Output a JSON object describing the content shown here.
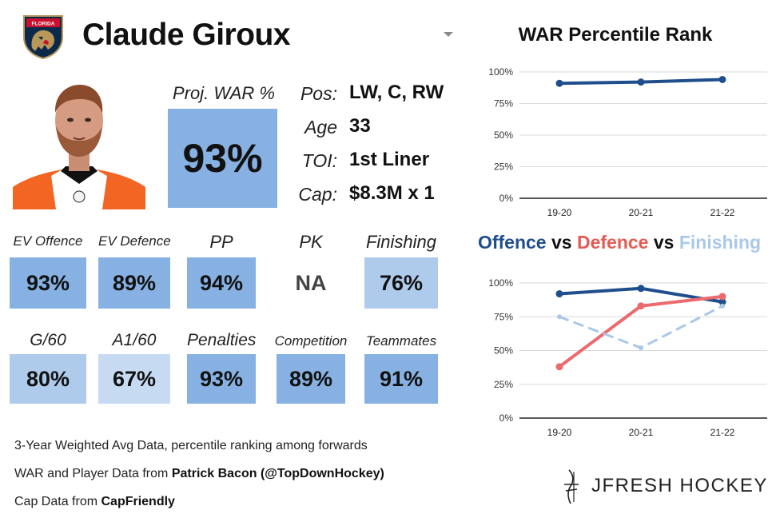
{
  "player": {
    "name": "Claude Giroux",
    "team_logo": "florida-panthers-logo",
    "team_logo_text": "FLORIDA"
  },
  "projected_war": {
    "label": "Proj. WAR %",
    "value": "93%"
  },
  "bio": [
    {
      "label": "Pos:",
      "value": "LW, C, RW"
    },
    {
      "label": "Age",
      "value": "33"
    },
    {
      "label": "TOI:",
      "value": "1st Liner"
    },
    {
      "label": "Cap:",
      "value": "$8.3M x 1"
    }
  ],
  "stats": {
    "row1": [
      {
        "label": "EV Offence",
        "value": "93%",
        "pct": 93
      },
      {
        "label": "EV Defence",
        "value": "89%",
        "pct": 89
      },
      {
        "label": "PP",
        "value": "94%",
        "pct": 94
      },
      {
        "label": "PK",
        "value": "NA",
        "pct": null
      },
      {
        "label": "Finishing",
        "value": "76%",
        "pct": 76
      }
    ],
    "row2": [
      {
        "label": "G/60",
        "value": "80%",
        "pct": 80
      },
      {
        "label": "A1/60",
        "value": "67%",
        "pct": 67
      },
      {
        "label": "Penalties",
        "value": "93%",
        "pct": 93
      },
      {
        "label": "Competition",
        "value": "89%",
        "pct": 89
      },
      {
        "label": "Teammates",
        "value": "91%",
        "pct": 91
      }
    ]
  },
  "footer": {
    "line1": "3-Year Weighted Avg Data, percentile ranking among forwards",
    "line2_prefix": "WAR and Player Data from ",
    "line2_bold": "Patrick Bacon (@TopDownHockey)",
    "line3_prefix": "Cap Data from ",
    "line3_bold": "CapFriendly"
  },
  "brand": {
    "name": "JFRESH HOCKEY"
  },
  "colors": {
    "dark_blue": "#1f4e8c",
    "mid_blue": "#86b1e2",
    "light_blue": "#aecbeb",
    "pale_blue": "#c6dbf1",
    "red": "#ec6a6d",
    "dashed_blue": "#a9c8e8"
  },
  "chart_data": [
    {
      "type": "line",
      "title": "WAR Percentile Rank",
      "categories": [
        "19-20",
        "20-21",
        "21-22"
      ],
      "series": [
        {
          "name": "WAR",
          "values": [
            91,
            92,
            94
          ],
          "color": "#1f4e8c",
          "style": "solid"
        }
      ],
      "ylim": [
        0,
        100
      ],
      "yticks": [
        "0%",
        "25%",
        "50%",
        "75%",
        "100%"
      ],
      "grid": true
    },
    {
      "type": "line",
      "title_parts": [
        {
          "text": "Offence",
          "color": "#1f4e8c"
        },
        {
          "text": " vs ",
          "color": "#111111"
        },
        {
          "text": "Defence",
          "color": "#e55a52"
        },
        {
          "text": " vs ",
          "color": "#111111"
        },
        {
          "text": "Finishing",
          "color": "#a9c8e8"
        }
      ],
      "categories": [
        "19-20",
        "20-21",
        "21-22"
      ],
      "series": [
        {
          "name": "Offence",
          "values": [
            92,
            96,
            86
          ],
          "color": "#1f4e8c",
          "style": "solid"
        },
        {
          "name": "Defence",
          "values": [
            38,
            83,
            90
          ],
          "color": "#ec6a6d",
          "style": "solid"
        },
        {
          "name": "Finishing",
          "values": [
            75,
            52,
            83
          ],
          "color": "#a9c8e8",
          "style": "dashed"
        }
      ],
      "ylim": [
        0,
        100
      ],
      "yticks": [
        "0%",
        "25%",
        "50%",
        "75%",
        "100%"
      ],
      "grid": true
    }
  ]
}
